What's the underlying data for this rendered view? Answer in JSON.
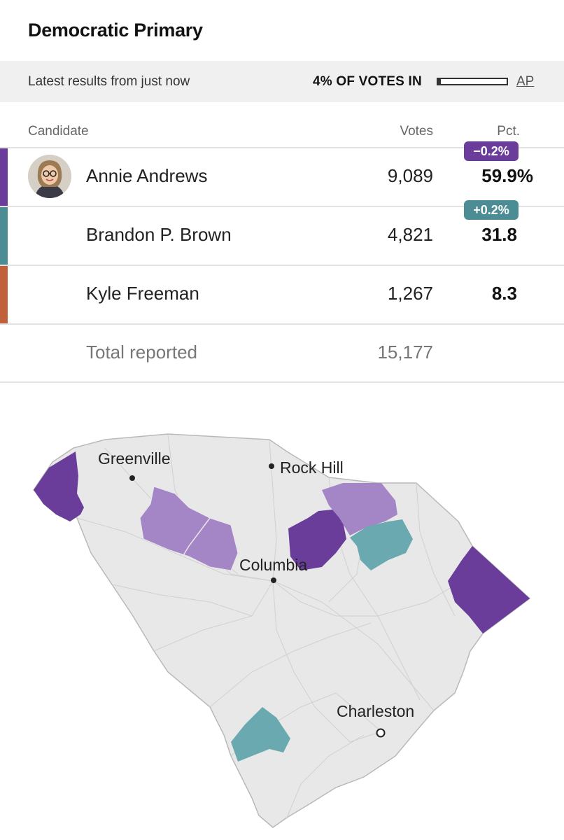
{
  "header": {
    "title": "Democratic Primary"
  },
  "status": {
    "latest": "Latest results from just now",
    "votes_in": "4% OF VOTES IN",
    "reporting_fraction": 0.04,
    "source_link": "AP"
  },
  "table": {
    "columns": {
      "candidate": "Candidate",
      "votes": "Votes",
      "pct": "Pct."
    },
    "candidates": [
      {
        "name": "Annie Andrews",
        "votes": "9,089",
        "pct": "59.9%",
        "change": "−0.2%",
        "color": "#6a3d9a"
      },
      {
        "name": "Brandon P. Brown",
        "votes": "4,821",
        "pct": "31.8",
        "change": "+0.2%",
        "color": "#4c8c94"
      },
      {
        "name": "Kyle Freeman",
        "votes": "1,267",
        "pct": "8.3",
        "change": "",
        "color": "#c0613b"
      }
    ],
    "total": {
      "label": "Total reported",
      "votes": "15,177"
    }
  },
  "map": {
    "colors": {
      "andrews_strong": "#6a3d9a",
      "andrews_lead": "#a485c6",
      "brown_lead": "#6aa9b0",
      "no_results": "#e8e8e8"
    },
    "cities": [
      "Greenville",
      "Rock Hill",
      "Columbia",
      "Charleston"
    ]
  }
}
